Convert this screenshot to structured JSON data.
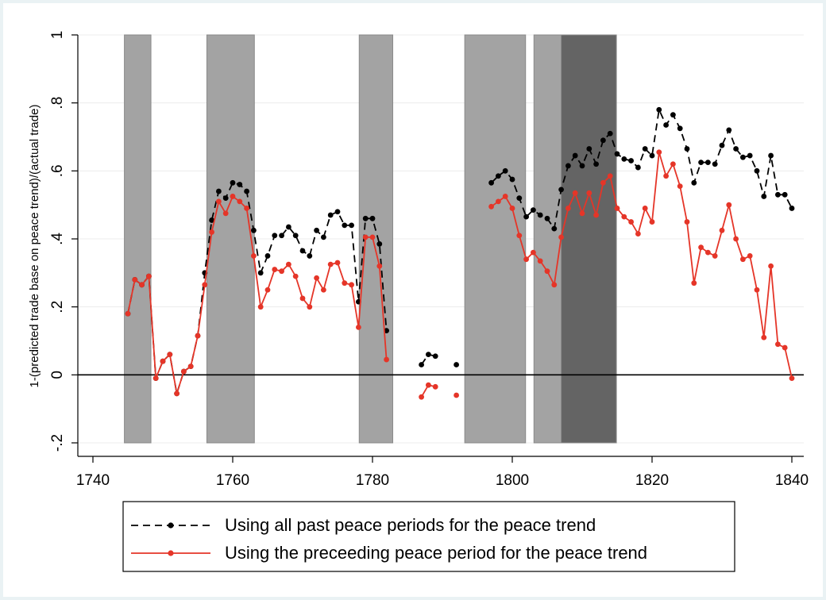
{
  "chart_data": {
    "type": "line",
    "title": "",
    "xlabel": "",
    "ylabel": "1-(predicted trade base on peace trend)/(actual trade)",
    "xlim": [
      1740,
      1840
    ],
    "ylim": [
      -0.2,
      1.0
    ],
    "x_ticks": [
      {
        "value": 1740,
        "label": "1740"
      },
      {
        "value": 1760,
        "label": "1760"
      },
      {
        "value": 1780,
        "label": "1780"
      },
      {
        "value": 1800,
        "label": "1800"
      },
      {
        "value": 1820,
        "label": "1820"
      },
      {
        "value": 1840,
        "label": "1840"
      }
    ],
    "y_ticks": [
      {
        "value": -0.2,
        "label": "-.2"
      },
      {
        "value": 0,
        "label": "0"
      },
      {
        "value": 0.2,
        "label": ".2"
      },
      {
        "value": 0.4,
        "label": ".4"
      },
      {
        "value": 0.6,
        "label": ".6"
      },
      {
        "value": 0.8,
        "label": ".8"
      },
      {
        "value": 1.0,
        "label": "1"
      }
    ],
    "grid": true,
    "shaded_periods": [
      {
        "start": 1744.5,
        "end": 1748.3,
        "color": "#a3a3a3"
      },
      {
        "start": 1756.3,
        "end": 1763.1,
        "color": "#a3a3a3"
      },
      {
        "start": 1778.1,
        "end": 1782.9,
        "color": "#a3a3a3"
      },
      {
        "start": 1793.2,
        "end": 1801.9,
        "color": "#a3a3a3"
      },
      {
        "start": 1803.1,
        "end": 1807.0,
        "color": "#a3a3a3"
      },
      {
        "start": 1807.0,
        "end": 1814.9,
        "color": "#646464"
      }
    ],
    "legend_position": "bottom",
    "series": [
      {
        "name": "Using all past peace periods for the peace trend",
        "color": "#000000",
        "dash": "dashed",
        "points": [
          [
            1745,
            0.18
          ],
          [
            1746,
            0.28
          ],
          [
            1747,
            0.265
          ],
          [
            1748,
            0.29
          ],
          [
            1749,
            -0.01
          ],
          [
            1750,
            0.04
          ],
          [
            1751,
            0.06
          ],
          [
            1752,
            -0.055
          ],
          [
            1753,
            0.01
          ],
          [
            1754,
            0.025
          ],
          [
            1755,
            0.115
          ],
          [
            1756,
            0.3
          ],
          [
            1757,
            0.455
          ],
          [
            1758,
            0.54
          ],
          [
            1759,
            0.52
          ],
          [
            1760,
            0.565
          ],
          [
            1761,
            0.56
          ],
          [
            1762,
            0.54
          ],
          [
            1763,
            0.425
          ],
          [
            1764,
            0.3
          ],
          [
            1765,
            0.35
          ],
          [
            1766,
            0.41
          ],
          [
            1767,
            0.41
          ],
          [
            1768,
            0.435
          ],
          [
            1769,
            0.41
          ],
          [
            1770,
            0.365
          ],
          [
            1771,
            0.35
          ],
          [
            1772,
            0.425
          ],
          [
            1773,
            0.405
          ],
          [
            1774,
            0.47
          ],
          [
            1775,
            0.48
          ],
          [
            1776,
            0.44
          ],
          [
            1777,
            0.44
          ],
          [
            1778,
            0.215
          ],
          [
            1779,
            0.46
          ],
          [
            1780,
            0.46
          ],
          [
            1781,
            0.385
          ],
          [
            1782,
            0.13
          ],
          null,
          [
            1787,
            0.03
          ],
          [
            1788,
            0.06
          ],
          [
            1789,
            0.055
          ],
          null,
          [
            1792,
            0.03
          ],
          null,
          [
            1797,
            0.565
          ],
          [
            1798,
            0.585
          ],
          [
            1799,
            0.6
          ],
          [
            1800,
            0.575
          ],
          [
            1801,
            0.52
          ],
          [
            1802,
            0.465
          ],
          [
            1803,
            0.485
          ],
          [
            1804,
            0.47
          ],
          [
            1805,
            0.46
          ],
          [
            1806,
            0.43
          ],
          [
            1807,
            0.545
          ],
          [
            1808,
            0.615
          ],
          [
            1809,
            0.645
          ],
          [
            1810,
            0.615
          ],
          [
            1811,
            0.665
          ],
          [
            1812,
            0.62
          ],
          [
            1813,
            0.69
          ],
          [
            1814,
            0.71
          ],
          [
            1815,
            0.65
          ],
          [
            1816,
            0.635
          ],
          [
            1817,
            0.63
          ],
          [
            1818,
            0.61
          ],
          [
            1819,
            0.665
          ],
          [
            1820,
            0.645
          ],
          [
            1821,
            0.78
          ],
          [
            1822,
            0.735
          ],
          [
            1823,
            0.765
          ],
          [
            1824,
            0.725
          ],
          [
            1825,
            0.665
          ],
          [
            1826,
            0.565
          ],
          [
            1827,
            0.625
          ],
          [
            1828,
            0.625
          ],
          [
            1829,
            0.62
          ],
          [
            1830,
            0.675
          ],
          [
            1831,
            0.72
          ],
          [
            1832,
            0.665
          ],
          [
            1833,
            0.64
          ],
          [
            1834,
            0.645
          ],
          [
            1835,
            0.6
          ],
          [
            1836,
            0.525
          ],
          [
            1837,
            0.645
          ],
          [
            1838,
            0.53
          ],
          [
            1839,
            0.53
          ],
          [
            1840,
            0.49
          ]
        ]
      },
      {
        "name": "Using the preceeding peace period for the peace trend",
        "color": "#e53528",
        "dash": "solid",
        "points": [
          [
            1745,
            0.18
          ],
          [
            1746,
            0.28
          ],
          [
            1747,
            0.265
          ],
          [
            1748,
            0.29
          ],
          [
            1749,
            -0.01
          ],
          [
            1750,
            0.04
          ],
          [
            1751,
            0.06
          ],
          [
            1752,
            -0.055
          ],
          [
            1753,
            0.01
          ],
          [
            1754,
            0.025
          ],
          [
            1755,
            0.115
          ],
          [
            1756,
            0.265
          ],
          [
            1757,
            0.42
          ],
          [
            1758,
            0.51
          ],
          [
            1759,
            0.475
          ],
          [
            1760,
            0.525
          ],
          [
            1761,
            0.51
          ],
          [
            1762,
            0.49
          ],
          [
            1763,
            0.35
          ],
          [
            1764,
            0.2
          ],
          [
            1765,
            0.25
          ],
          [
            1766,
            0.31
          ],
          [
            1767,
            0.305
          ],
          [
            1768,
            0.325
          ],
          [
            1769,
            0.29
          ],
          [
            1770,
            0.225
          ],
          [
            1771,
            0.2
          ],
          [
            1772,
            0.285
          ],
          [
            1773,
            0.25
          ],
          [
            1774,
            0.325
          ],
          [
            1775,
            0.33
          ],
          [
            1776,
            0.27
          ],
          [
            1777,
            0.265
          ],
          [
            1778,
            0.14
          ],
          [
            1779,
            0.405
          ],
          [
            1780,
            0.405
          ],
          [
            1781,
            0.32
          ],
          [
            1782,
            0.045
          ],
          null,
          [
            1787,
            -0.065
          ],
          [
            1788,
            -0.03
          ],
          [
            1789,
            -0.035
          ],
          null,
          [
            1792,
            -0.06
          ],
          null,
          [
            1797,
            0.495
          ],
          [
            1798,
            0.51
          ],
          [
            1799,
            0.525
          ],
          [
            1800,
            0.49
          ],
          [
            1801,
            0.41
          ],
          [
            1802,
            0.34
          ],
          [
            1803,
            0.36
          ],
          [
            1804,
            0.335
          ],
          [
            1805,
            0.305
          ],
          [
            1806,
            0.265
          ],
          [
            1807,
            0.405
          ],
          [
            1808,
            0.49
          ],
          [
            1809,
            0.535
          ],
          [
            1810,
            0.475
          ],
          [
            1811,
            0.535
          ],
          [
            1812,
            0.47
          ],
          [
            1813,
            0.565
          ],
          [
            1814,
            0.585
          ],
          [
            1815,
            0.49
          ],
          [
            1816,
            0.465
          ],
          [
            1817,
            0.45
          ],
          [
            1818,
            0.415
          ],
          [
            1819,
            0.49
          ],
          [
            1820,
            0.45
          ],
          [
            1821,
            0.655
          ],
          [
            1822,
            0.585
          ],
          [
            1823,
            0.62
          ],
          [
            1824,
            0.555
          ],
          [
            1825,
            0.45
          ],
          [
            1826,
            0.27
          ],
          [
            1827,
            0.375
          ],
          [
            1828,
            0.36
          ],
          [
            1829,
            0.35
          ],
          [
            1830,
            0.425
          ],
          [
            1831,
            0.5
          ],
          [
            1832,
            0.4
          ],
          [
            1833,
            0.34
          ],
          [
            1834,
            0.35
          ],
          [
            1835,
            0.25
          ],
          [
            1836,
            0.11
          ],
          [
            1837,
            0.32
          ],
          [
            1838,
            0.09
          ],
          [
            1839,
            0.08
          ],
          [
            1840,
            -0.01
          ]
        ]
      }
    ]
  }
}
